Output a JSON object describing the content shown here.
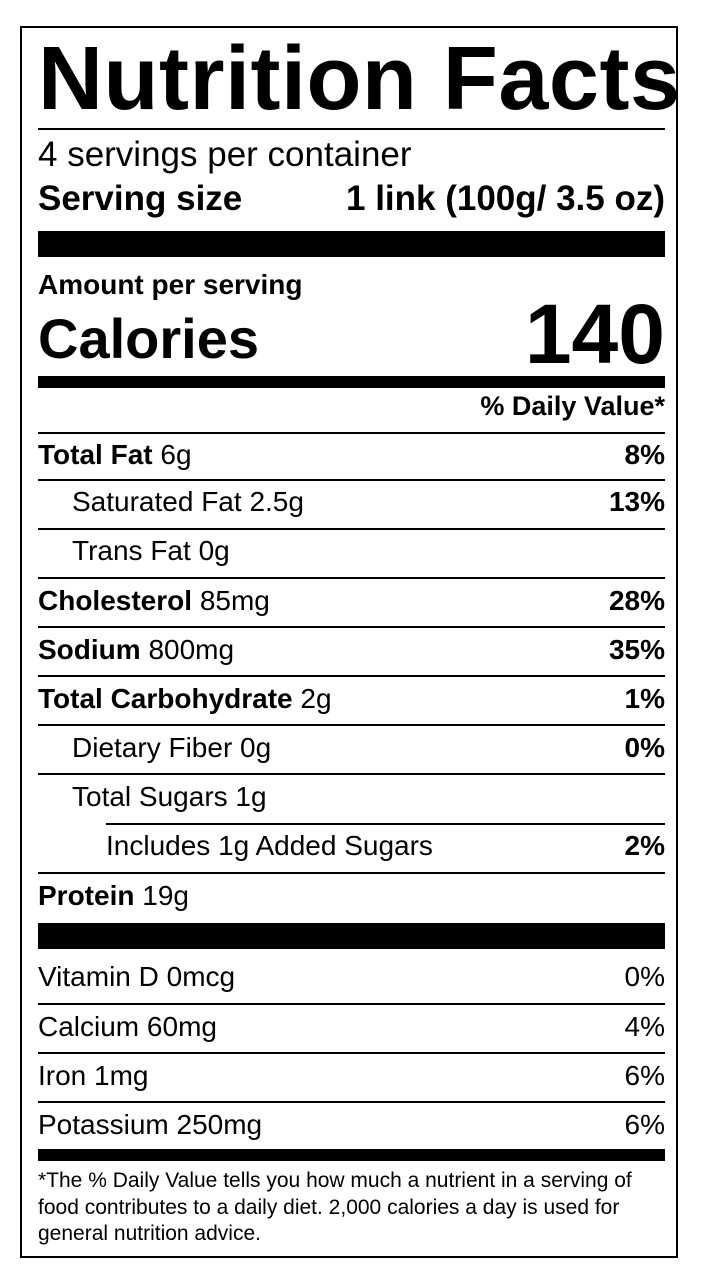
{
  "title": "Nutrition Facts",
  "servings_per_container": "4 servings per container",
  "serving_size_label": "Serving size",
  "serving_size_value": "1 link (100g/ 3.5 oz)",
  "amount_per_serving": "Amount per serving",
  "calories_label": "Calories",
  "calories_value": "140",
  "daily_value_header": "% Daily Value*",
  "nutrients": [
    {
      "name": "Total Fat",
      "amount": "6g",
      "dv": "8%"
    },
    {
      "name": "Saturated Fat",
      "amount": "2.5g",
      "dv": "13%"
    },
    {
      "name": "Trans Fat",
      "amount": "0g",
      "dv": ""
    },
    {
      "name": "Cholesterol",
      "amount": "85mg",
      "dv": "28%"
    },
    {
      "name": "Sodium",
      "amount": "800mg",
      "dv": "35%"
    },
    {
      "name": "Total Carbohydrate",
      "amount": "2g",
      "dv": "1%"
    },
    {
      "name": "Dietary Fiber",
      "amount": "0g",
      "dv": "0%"
    },
    {
      "name": "Total Sugars",
      "amount": "1g",
      "dv": ""
    },
    {
      "name": "Includes 1g Added Sugars",
      "amount": "",
      "dv": "2%"
    },
    {
      "name": "Protein",
      "amount": "19g",
      "dv": ""
    }
  ],
  "vitamins": [
    {
      "name": "Vitamin D",
      "amount": "0mcg",
      "dv": "0%"
    },
    {
      "name": "Calcium",
      "amount": "60mg",
      "dv": "4%"
    },
    {
      "name": "Iron",
      "amount": "1mg",
      "dv": "6%"
    },
    {
      "name": "Potassium",
      "amount": "250mg",
      "dv": "6%"
    }
  ],
  "footnote": "*The % Daily Value tells you how much a nutrient in a serving of food contributes to a daily diet. 2,000 calories a day is used for general nutrition advice."
}
